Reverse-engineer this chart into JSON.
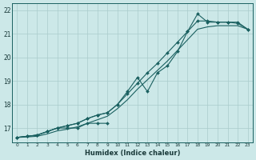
{
  "xlabel": "Humidex (Indice chaleur)",
  "bg_color": "#cce8e8",
  "grid_color": "#aacccc",
  "line_color": "#1a6060",
  "xlim": [
    -0.5,
    23.5
  ],
  "ylim": [
    16.4,
    22.3
  ],
  "xtick_labels": [
    "0",
    "1",
    "2",
    "3",
    "4",
    "5",
    "6",
    "7",
    "8",
    "9",
    "10",
    "11",
    "12",
    "13",
    "14",
    "15",
    "16",
    "17",
    "18",
    "19",
    "20",
    "21",
    "22",
    "23"
  ],
  "yticks": [
    17,
    18,
    19,
    20,
    21,
    22
  ],
  "series": [
    {
      "x": [
        0,
        1,
        2,
        3,
        4,
        5,
        6,
        7,
        8,
        9,
        10,
        11,
        12,
        13,
        14,
        15,
        16,
        17,
        18,
        19,
        20,
        21,
        22,
        23
      ],
      "y": [
        16.6,
        16.65,
        16.7,
        16.85,
        17.0,
        17.1,
        17.2,
        17.4,
        17.55,
        17.65,
        18.0,
        18.45,
        18.9,
        19.35,
        19.75,
        20.2,
        20.65,
        21.1,
        21.85,
        21.5,
        21.5,
        21.5,
        21.5,
        21.2
      ],
      "has_markers": true
    },
    {
      "x": [
        0,
        1,
        2,
        3,
        4,
        5,
        6,
        7,
        8,
        9,
        10,
        11,
        12,
        13,
        14,
        15,
        16,
        17,
        18,
        19,
        20,
        21,
        22,
        23
      ],
      "y": [
        16.6,
        16.65,
        16.7,
        16.85,
        17.0,
        17.1,
        17.2,
        17.4,
        17.55,
        17.65,
        18.0,
        18.55,
        19.15,
        18.55,
        19.35,
        19.65,
        20.25,
        21.1,
        21.55,
        21.55,
        21.5,
        21.5,
        21.45,
        21.2
      ],
      "has_markers": true
    },
    {
      "x": [
        0,
        1,
        2,
        3,
        4,
        5,
        6,
        7,
        8,
        9
      ],
      "y": [
        16.6,
        16.65,
        16.7,
        16.85,
        17.0,
        17.0,
        17.0,
        17.2,
        17.2,
        17.2
      ],
      "has_markers": true
    },
    {
      "x": [
        0,
        1,
        2,
        3,
        4,
        5,
        6,
        7,
        8,
        9,
        10,
        11,
        12,
        13,
        14,
        15,
        16,
        17,
        18,
        19,
        20,
        21,
        22,
        23
      ],
      "y": [
        16.6,
        16.62,
        16.65,
        16.75,
        16.88,
        16.95,
        17.05,
        17.2,
        17.35,
        17.5,
        17.82,
        18.2,
        18.65,
        19.05,
        19.45,
        19.85,
        20.3,
        20.75,
        21.2,
        21.3,
        21.35,
        21.35,
        21.35,
        21.2
      ],
      "has_markers": false
    }
  ]
}
